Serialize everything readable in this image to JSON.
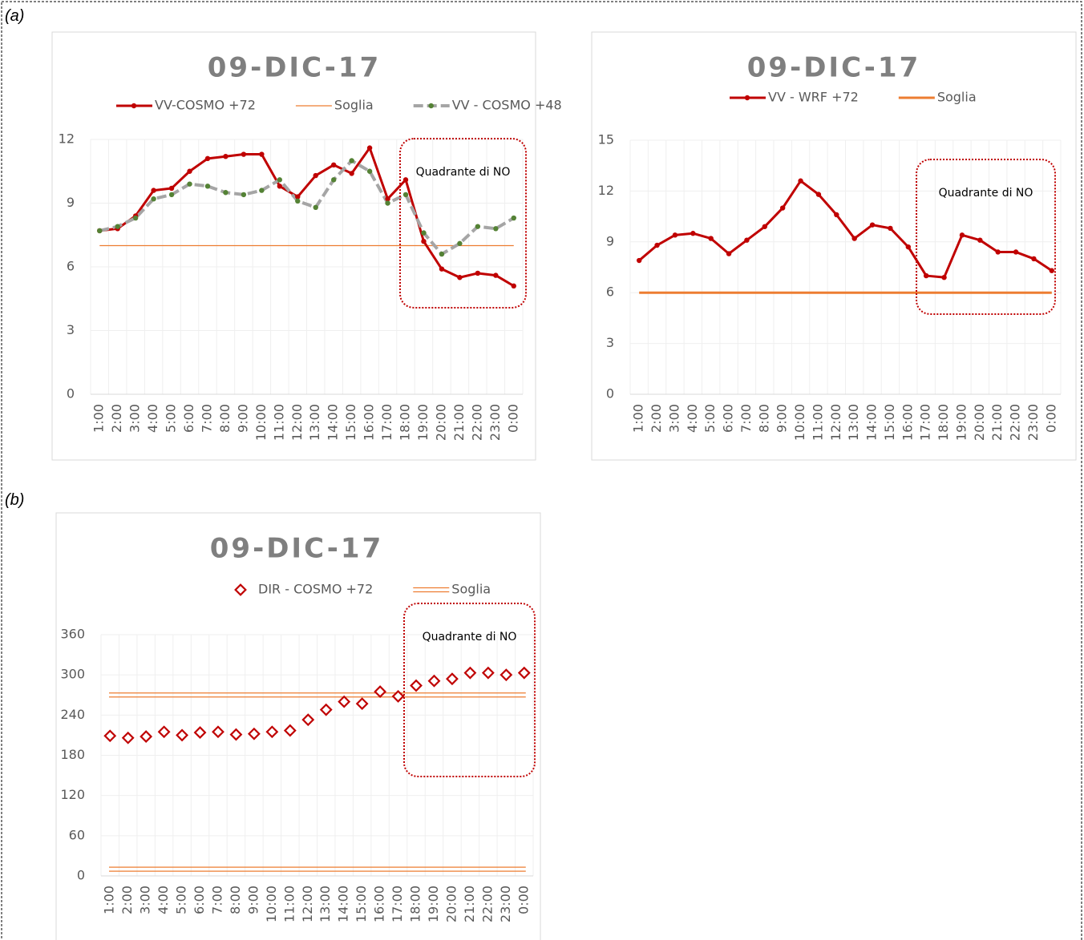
{
  "panel_labels": [
    "(a)",
    "(b)"
  ],
  "chart_data": [
    {
      "type": "line",
      "title": "09-DIC-17",
      "categories": [
        "1:00",
        "2:00",
        "3:00",
        "4:00",
        "5:00",
        "6:00",
        "7:00",
        "8:00",
        "9:00",
        "10:00",
        "11:00",
        "12:00",
        "13:00",
        "14:00",
        "15:00",
        "16:00",
        "17:00",
        "18:00",
        "19:00",
        "20:00",
        "21:00",
        "22:00",
        "23:00",
        "0:00"
      ],
      "series": [
        {
          "name": "VV-COSMO +72",
          "color": "#c00000",
          "line": true,
          "width": 3,
          "marker": "dot",
          "marker_color": "#c00000",
          "values": [
            7.7,
            7.8,
            8.4,
            9.6,
            9.7,
            10.5,
            11.1,
            11.2,
            11.3,
            11.3,
            9.8,
            9.3,
            10.3,
            10.8,
            10.4,
            11.6,
            9.2,
            10.1,
            7.2,
            5.9,
            5.5,
            5.7,
            5.6,
            5.1
          ]
        },
        {
          "name": "VV - COSMO +48",
          "color": "#a5a5a5",
          "line": true,
          "width": 4,
          "dash": true,
          "marker": "dot",
          "marker_color": "#548235",
          "values": [
            7.7,
            7.9,
            8.3,
            9.2,
            9.4,
            9.9,
            9.8,
            9.5,
            9.4,
            9.6,
            10.1,
            9.1,
            8.8,
            10.1,
            11.0,
            10.5,
            9.0,
            9.4,
            7.6,
            6.6,
            7.1,
            7.9,
            7.8,
            8.3
          ]
        }
      ],
      "thresholds": {
        "name": "Soglia",
        "color": "#ed7d31",
        "width": 1.2,
        "double": false,
        "values": [
          7
        ]
      },
      "legend_order": [
        "s0",
        "t",
        "s1"
      ],
      "annotation": "Quadrante di NO",
      "ylim": [
        0,
        12
      ],
      "yticks": [
        0,
        3,
        6,
        9,
        12
      ],
      "grid": true
    },
    {
      "type": "line",
      "title": "09-DIC-17",
      "categories": [
        "1:00",
        "2:00",
        "3:00",
        "4:00",
        "5:00",
        "6:00",
        "7:00",
        "8:00",
        "9:00",
        "10:00",
        "11:00",
        "12:00",
        "13:00",
        "14:00",
        "15:00",
        "16:00",
        "17:00",
        "18:00",
        "19:00",
        "20:00",
        "21:00",
        "22:00",
        "23:00",
        "0:00"
      ],
      "series": [
        {
          "name": "VV - WRF +72",
          "color": "#c00000",
          "line": true,
          "width": 3,
          "marker": "dot",
          "marker_color": "#c00000",
          "values": [
            7.9,
            8.8,
            9.4,
            9.5,
            9.2,
            8.3,
            9.1,
            9.9,
            11.0,
            12.6,
            11.8,
            10.6,
            9.2,
            10.0,
            9.8,
            8.7,
            7.0,
            6.9,
            9.4,
            9.1,
            8.4,
            8.4,
            8.0,
            7.3
          ]
        }
      ],
      "thresholds": {
        "name": "Soglia",
        "color": "#ed7d31",
        "width": 3,
        "double": false,
        "values": [
          6
        ]
      },
      "legend_order": [
        "s0",
        "t"
      ],
      "annotation": "Quadrante di NO",
      "ylim": [
        0,
        15
      ],
      "yticks": [
        0,
        3,
        6,
        9,
        12,
        15
      ],
      "grid": true
    },
    {
      "type": "line",
      "title": "09-DIC-17",
      "categories": [
        "1:00",
        "2:00",
        "3:00",
        "4:00",
        "5:00",
        "6:00",
        "7:00",
        "8:00",
        "9:00",
        "10:00",
        "11:00",
        "12:00",
        "13:00",
        "14:00",
        "15:00",
        "16:00",
        "17:00",
        "18:00",
        "19:00",
        "20:00",
        "21:00",
        "22:00",
        "23:00",
        "0:00"
      ],
      "series": [
        {
          "name": "DIR - COSMO +72",
          "color": "#c00000",
          "line": false,
          "width": 0,
          "marker": "diamond",
          "marker_color": "#c00000",
          "values": [
            209,
            206,
            208,
            215,
            210,
            214,
            215,
            211,
            212,
            215,
            217,
            233,
            248,
            260,
            257,
            275,
            268,
            284,
            291,
            294,
            303,
            303,
            300,
            303
          ]
        }
      ],
      "thresholds": {
        "name": "Soglia",
        "color": "#ed7d31",
        "width": 1.2,
        "double": true,
        "values": [
          270,
          10
        ]
      },
      "legend_order": [
        "s0",
        "t"
      ],
      "annotation": "Quadrante di NO",
      "ylim": [
        0,
        360
      ],
      "yticks": [
        0,
        60,
        120,
        180,
        240,
        300,
        360
      ],
      "grid": true
    }
  ]
}
